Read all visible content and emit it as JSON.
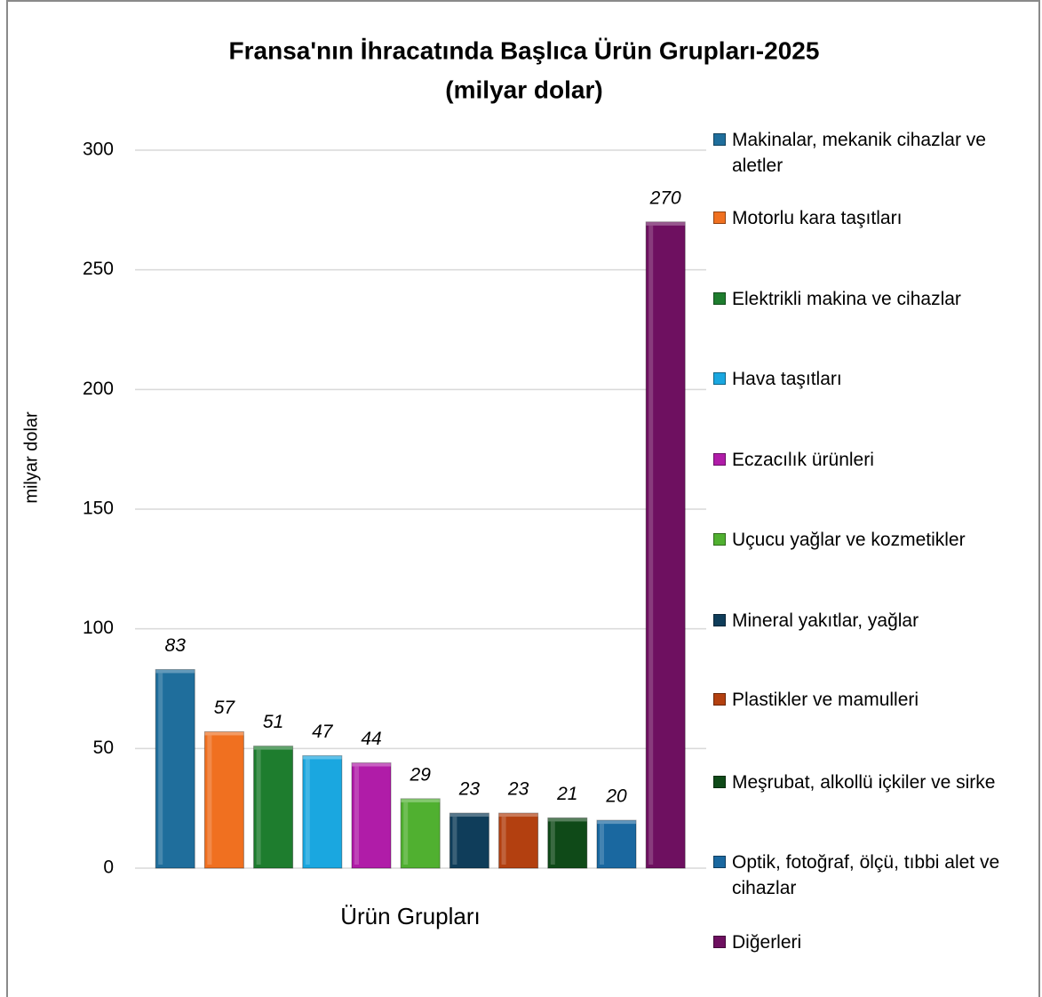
{
  "chart_data": {
    "type": "bar",
    "title": "Fransa'nın İhracatında Başlıca Ürün Grupları-2025",
    "subtitle": "(milyar dolar)",
    "y_label": "milyar dolar",
    "x_label": "Ürün Grupları",
    "ylim": [
      0,
      300
    ],
    "yticks": [
      0,
      50,
      100,
      150,
      200,
      250,
      300
    ],
    "grid": true,
    "legend": "right",
    "series": [
      {
        "name": "Makinalar, mekanik cihazlar ve aletler",
        "color": "#1f6e9c",
        "values": [
          83
        ]
      },
      {
        "name": "Motorlu kara taşıtları",
        "color": "#f07020",
        "values": [
          57
        ]
      },
      {
        "name": "Elektrikli makina ve cihazlar",
        "color": "#1e7d2e",
        "values": [
          51
        ]
      },
      {
        "name": "Hava taşıtları",
        "color": "#1aa7e0",
        "values": [
          47
        ]
      },
      {
        "name": "Eczacılık ürünleri",
        "color": "#b01ca8",
        "values": [
          44
        ]
      },
      {
        "name": "Uçucu yağlar ve kozmetikler",
        "color": "#50b030",
        "values": [
          29
        ]
      },
      {
        "name": "Mineral yakıtlar, yağlar",
        "color": "#0f3d5a",
        "values": [
          23
        ]
      },
      {
        "name": "Plastikler ve mamulleri",
        "color": "#b34010",
        "values": [
          23
        ]
      },
      {
        "name": "Meşrubat, alkollü içkiler ve sirke",
        "color": "#0f4a18",
        "values": [
          21
        ]
      },
      {
        "name": "Optik, fotoğraf, ölçü, tıbbi alet ve cihazlar",
        "color": "#1a68a0",
        "values": [
          20
        ]
      },
      {
        "name": "Diğerleri",
        "color": "#6e1060",
        "values": [
          270
        ]
      }
    ]
  }
}
